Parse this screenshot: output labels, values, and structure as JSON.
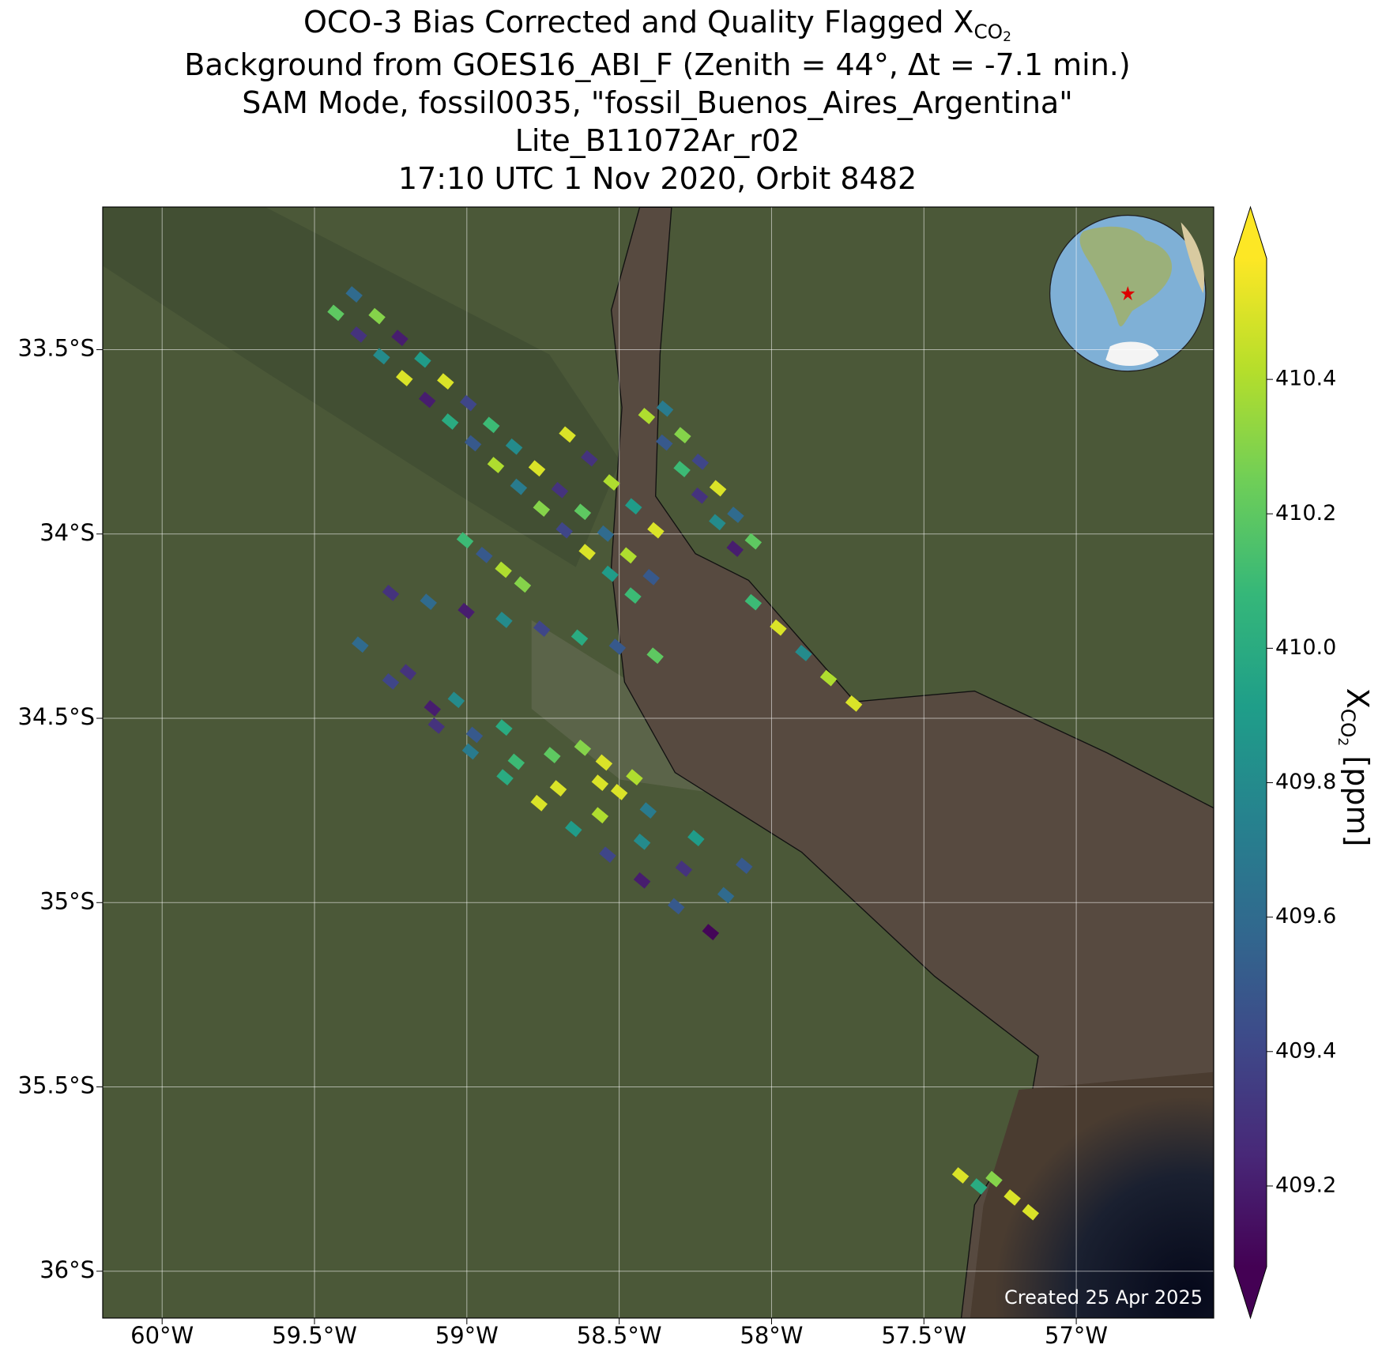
{
  "chart_data": {
    "type": "scatter",
    "title_lines": [
      {
        "text": "OCO-3 Bias Corrected and Quality Flagged X",
        "sub": "CO",
        "subsub": "2"
      },
      {
        "text": "Background from GOES16_ABI_F (Zenith = 44°, Δt = -7.1 min.)"
      },
      {
        "text": "SAM Mode, fossil0035, \"fossil_Buenos_Aires_Argentina\""
      },
      {
        "text": "Lite_B11072Ar_r02"
      },
      {
        "text": "17:10 UTC 1 Nov 2020, Orbit 8482"
      }
    ],
    "colorbar_label": {
      "text": "X",
      "sub": "CO",
      "subsub": "2",
      "unit": " [ppm]"
    },
    "footer": "Created 25 Apr 2025",
    "xlim": [
      -60.195,
      -56.549
    ],
    "ylim": [
      -36.127,
      -33.113
    ],
    "xticks": [
      {
        "value": -60,
        "label": "60°W"
      },
      {
        "value": -59.5,
        "label": "59.5°W"
      },
      {
        "value": -59,
        "label": "59°W"
      },
      {
        "value": -58.5,
        "label": "58.5°W"
      },
      {
        "value": -58,
        "label": "58°W"
      },
      {
        "value": -57.5,
        "label": "57.5°W"
      },
      {
        "value": -57,
        "label": "57°W"
      }
    ],
    "yticks": [
      {
        "value": -33.5,
        "label": "33.5°S"
      },
      {
        "value": -34,
        "label": "34°S"
      },
      {
        "value": -34.5,
        "label": "34.5°S"
      },
      {
        "value": -35,
        "label": "35°S"
      },
      {
        "value": -35.5,
        "label": "35.5°S"
      },
      {
        "value": -36,
        "label": "36°S"
      }
    ],
    "grid": true,
    "clim": [
      409.08,
      410.58
    ],
    "cticks": [
      409.2,
      409.4,
      409.6,
      409.8,
      {
        "value": 410,
        "label": "410.0"
      },
      410.2,
      410.4
    ],
    "colormap": [
      "#440154",
      "#482878",
      "#3e4989",
      "#31688e",
      "#26828e",
      "#1f9e89",
      "#35b779",
      "#6ece58",
      "#b5de2b",
      "#fde725"
    ],
    "x": [
      -59.43,
      -59.355,
      -59.28,
      -59.205,
      -59.13,
      -59.055,
      -58.98,
      -58.905,
      -58.83,
      -58.755,
      -58.68,
      -58.605,
      -58.53,
      -58.455,
      -59.37,
      -59.295,
      -59.22,
      -59.145,
      -59.07,
      -58.995,
      -58.92,
      -58.845,
      -58.77,
      -58.695,
      -58.62,
      -58.545,
      -58.47,
      -58.395,
      -58.41,
      -58.352,
      -58.294,
      -58.236,
      -58.178,
      -58.12,
      -58.35,
      -58.292,
      -58.234,
      -58.176,
      -58.118,
      -58.06,
      -58.67,
      -58.598,
      -58.525,
      -58.453,
      -58.38,
      -59.006,
      -58.943,
      -58.88,
      -58.817,
      -59.25,
      -59.126,
      -59.002,
      -58.878,
      -58.754,
      -58.63,
      -58.506,
      -58.382,
      -59.35,
      -59.193,
      -59.035,
      -58.878,
      -58.72,
      -58.563,
      -58.405,
      -58.248,
      -58.09,
      -59.25,
      -59.113,
      -58.975,
      -58.838,
      -58.7,
      -58.563,
      -58.425,
      -58.288,
      -58.15,
      -59.1,
      -58.988,
      -58.875,
      -58.763,
      -58.65,
      -58.538,
      -58.425,
      -58.313,
      -58.2,
      -58.55,
      -58.45,
      -58.5,
      -58.62,
      -58.06,
      -57.978,
      -57.895,
      -57.813,
      -57.73,
      -57.38,
      -57.32,
      -57.27,
      -57.21,
      -57.15
    ],
    "y": [
      -33.4,
      -33.459,
      -33.518,
      -33.577,
      -33.636,
      -33.695,
      -33.754,
      -33.813,
      -33.872,
      -33.931,
      -33.99,
      -34.049,
      -34.108,
      -34.167,
      -33.35,
      -33.409,
      -33.468,
      -33.527,
      -33.586,
      -33.645,
      -33.704,
      -33.763,
      -33.822,
      -33.881,
      -33.94,
      -33.999,
      -34.058,
      -34.117,
      -33.68,
      -33.752,
      -33.824,
      -33.896,
      -33.968,
      -34.04,
      -33.66,
      -33.732,
      -33.804,
      -33.876,
      -33.948,
      -34.02,
      -33.73,
      -33.795,
      -33.86,
      -33.925,
      -33.99,
      -34.017,
      -34.057,
      -34.097,
      -34.137,
      -34.16,
      -34.184,
      -34.209,
      -34.233,
      -34.257,
      -34.281,
      -34.306,
      -34.33,
      -34.3,
      -34.375,
      -34.45,
      -34.525,
      -34.6,
      -34.675,
      -34.75,
      -34.825,
      -34.9,
      -34.4,
      -34.473,
      -34.545,
      -34.618,
      -34.69,
      -34.763,
      -34.835,
      -34.908,
      -34.98,
      -34.52,
      -34.59,
      -34.66,
      -34.73,
      -34.8,
      -34.87,
      -34.94,
      -35.01,
      -35.08,
      -34.62,
      -34.66,
      -34.7,
      -34.58,
      -34.185,
      -34.254,
      -34.323,
      -34.391,
      -34.46,
      -35.74,
      -35.77,
      -35.75,
      -35.8,
      -35.84
    ],
    "values": [
      410.2,
      409.3,
      409.8,
      410.5,
      409.2,
      410.0,
      409.5,
      410.4,
      409.7,
      410.3,
      409.4,
      410.5,
      409.9,
      410.1,
      409.6,
      410.3,
      409.2,
      409.9,
      410.5,
      409.4,
      410.1,
      409.8,
      410.5,
      409.3,
      410.2,
      409.6,
      410.4,
      409.5,
      410.4,
      409.5,
      410.1,
      409.3,
      409.8,
      409.2,
      409.7,
      410.3,
      409.4,
      410.5,
      409.6,
      410.2,
      410.5,
      409.3,
      410.4,
      409.9,
      410.5,
      410.1,
      409.5,
      410.4,
      410.3,
      409.3,
      409.6,
      409.2,
      409.8,
      409.4,
      410.0,
      409.5,
      410.2,
      409.6,
      409.3,
      409.8,
      410.0,
      410.2,
      410.5,
      409.7,
      409.9,
      409.5,
      409.4,
      409.2,
      409.5,
      410.1,
      410.5,
      410.4,
      409.8,
      409.3,
      409.6,
      409.3,
      409.7,
      410.0,
      410.5,
      409.9,
      409.4,
      409.2,
      409.5,
      409.1,
      410.5,
      410.4,
      410.5,
      410.3,
      410.1,
      410.5,
      409.8,
      410.4,
      410.5,
      410.5,
      410.0,
      410.3,
      410.5,
      410.5
    ]
  }
}
